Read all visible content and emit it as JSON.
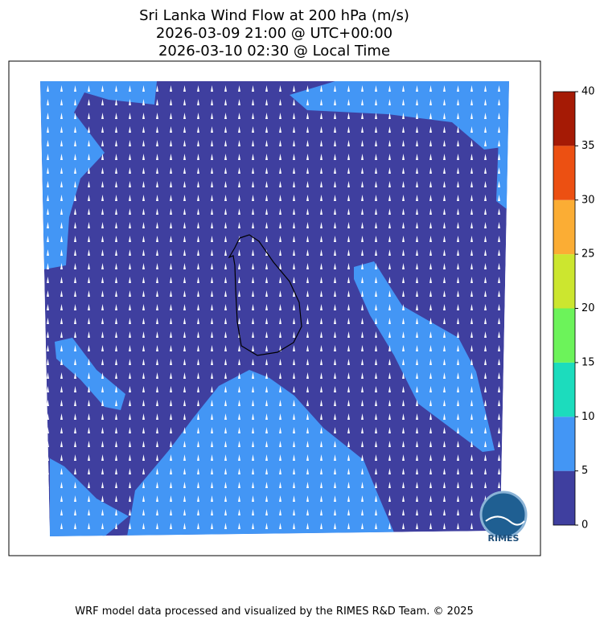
{
  "chart_data": {
    "type": "map",
    "title": [
      "Sri Lanka Wind Flow at 200 hPa (m/s)",
      "2026-03-09 21:00 @ UTC+00:00",
      "2026-03-10 02:30 @ Local Time"
    ],
    "colorbar": {
      "ticks": [
        0,
        5,
        10,
        15,
        20,
        25,
        30,
        35,
        40
      ],
      "colors": [
        "#3f3f9f",
        "#4396f5",
        "#1cdcbd",
        "#6cf35a",
        "#cce62f",
        "#fbad34",
        "#ec5012",
        "#a51a05"
      ]
    },
    "logo": "RIMES",
    "footer": "WRF model data processed and visualized by the RIMES R&D Team. © 2025"
  }
}
